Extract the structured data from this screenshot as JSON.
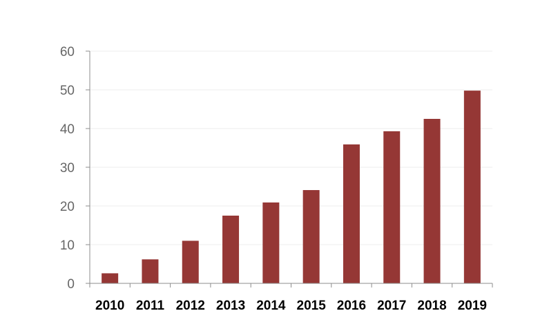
{
  "chart_data": {
    "type": "bar",
    "title": "",
    "xlabel": "",
    "ylabel": "",
    "categories": [
      "2010",
      "2011",
      "2012",
      "2013",
      "2014",
      "2015",
      "2016",
      "2017",
      "2018",
      "2019"
    ],
    "values": [
      2.6,
      6.2,
      11.0,
      17.5,
      20.9,
      24.1,
      35.9,
      39.3,
      42.5,
      49.8
    ],
    "ylim": [
      0,
      60
    ],
    "yticks": [
      0,
      10,
      20,
      30,
      40,
      50,
      60
    ],
    "grid": true,
    "legend": "none",
    "colors": {
      "bar": "#953735",
      "grid": "#eeeeee",
      "axis": "#8c8c8c",
      "ytick_text": "#666666",
      "xtick_text": "#000000"
    }
  }
}
